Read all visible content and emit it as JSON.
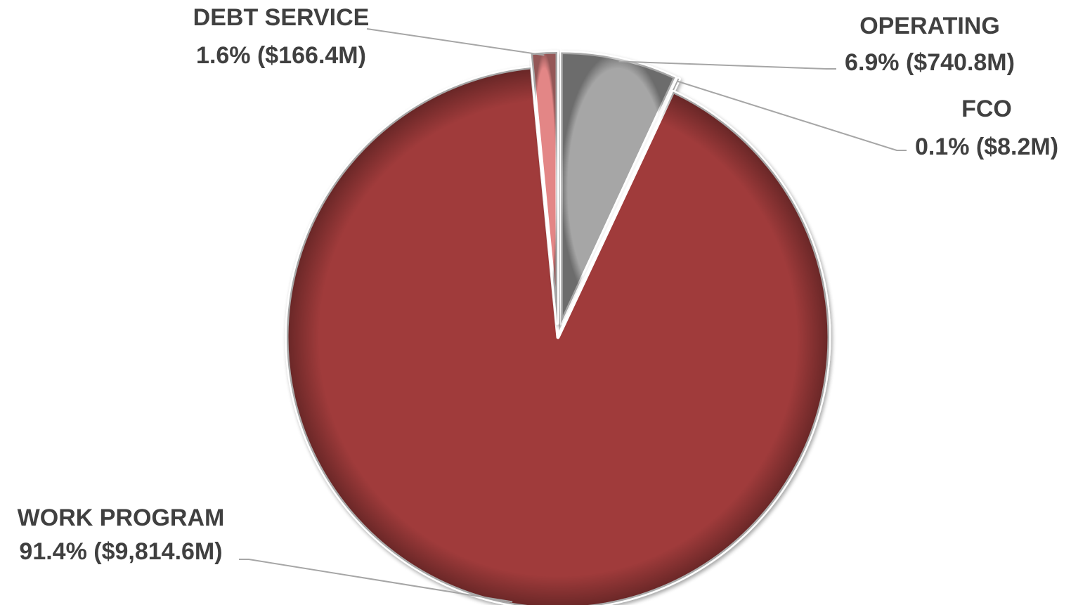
{
  "chart_data": {
    "type": "pie",
    "title": "",
    "slices": [
      {
        "key": "operating",
        "name": "OPERATING",
        "percent_label": "6.9% ($740.8M)",
        "value": 740.8,
        "color": "#a6a6a6",
        "exploded": true
      },
      {
        "key": "fco",
        "name": "FCO",
        "percent_label": "0.1% ($8.2M)",
        "value": 8.2,
        "color": "#d9d9d9",
        "exploded": true
      },
      {
        "key": "work_program",
        "name": "WORK PROGRAM",
        "percent_label": "91.4% ($9,814.6M)",
        "value": 9814.6,
        "color": "#a03b3b",
        "exploded": false
      },
      {
        "key": "debt_service",
        "name": "DEBT SERVICE",
        "percent_label": "1.6% ($166.4M)",
        "value": 166.4,
        "color": "#e38686",
        "exploded": true
      }
    ],
    "start_angle_deg": 0,
    "direction": "clockwise",
    "legend": "none",
    "label_color": "#404040",
    "leader_color": "#a6a6a6"
  }
}
